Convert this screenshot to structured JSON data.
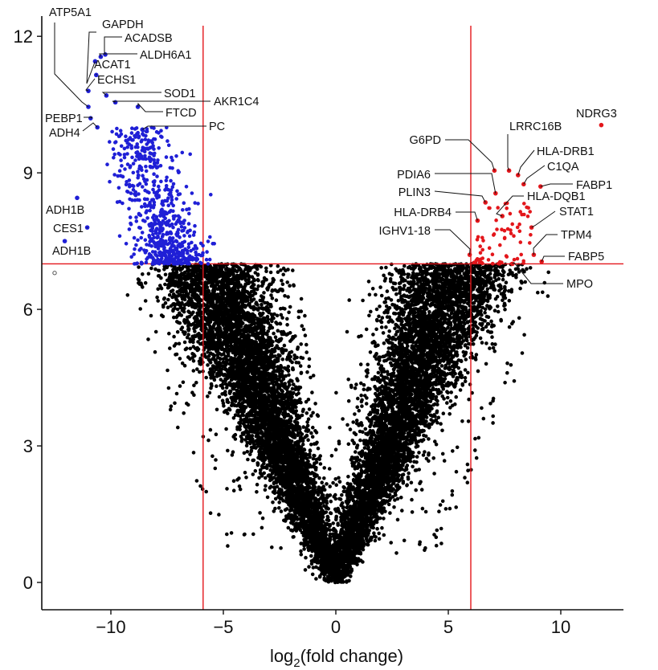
{
  "chart_data": {
    "type": "scatter",
    "title": "",
    "xlabel": {
      "main": "log",
      "sub": "2",
      "rest": "(fold change)"
    },
    "ylabel": "",
    "xlim": [
      -13.4,
      12.5
    ],
    "ylim": [
      -0.6,
      12.4
    ],
    "x_ticks": [
      {
        "value": -10,
        "label": "−10"
      },
      {
        "value": -5,
        "label": "−5"
      },
      {
        "value": 0,
        "label": "0"
      },
      {
        "value": 5,
        "label": "5"
      },
      {
        "value": 10,
        "label": "10"
      }
    ],
    "y_ticks": [
      {
        "value": 0,
        "label": "0"
      },
      {
        "value": 3,
        "label": "3"
      },
      {
        "value": 6,
        "label": "6"
      },
      {
        "value": 9,
        "label": "9"
      },
      {
        "value": 12,
        "label": "12"
      }
    ],
    "thresholds": {
      "x": [
        -5.9,
        6.0
      ],
      "y": 7.0
    },
    "grid": false,
    "colors": {
      "not_significant": "#000000",
      "down_regulated": "#1f1fd6",
      "up_regulated": "#e3161b",
      "threshold_line": "#e3161b"
    },
    "series": [
      {
        "group": "down_regulated",
        "points": [
          {
            "label": "ATP5A1",
            "x": -11.0,
            "y": 10.45
          },
          {
            "label": "GAPDH",
            "x": -10.7,
            "y": 11.45
          },
          {
            "label": "ACADSB",
            "x": -10.25,
            "y": 11.6
          },
          {
            "label": "ALDH6A1",
            "x": -10.45,
            "y": 11.55
          },
          {
            "label": "ACAT1",
            "x": -10.65,
            "y": 11.15
          },
          {
            "label": "ECHS1",
            "x": -11.0,
            "y": 10.8
          },
          {
            "label": "SOD1",
            "x": -10.2,
            "y": 10.7
          },
          {
            "label": "AKR1C4",
            "x": -9.8,
            "y": 10.55
          },
          {
            "label": "FTCD",
            "x": -8.8,
            "y": 10.45
          },
          {
            "label": "PEBP1",
            "x": -10.9,
            "y": 10.2
          },
          {
            "label": "ADH4",
            "x": -10.6,
            "y": 10.0
          },
          {
            "label": "PC",
            "x": -8.6,
            "y": 9.95
          },
          {
            "label": "ADH1B",
            "x": -11.5,
            "y": 8.45
          },
          {
            "label": "CES1",
            "x": -11.05,
            "y": 7.8
          },
          {
            "label": "ADH1B",
            "x": -12.05,
            "y": 7.5
          }
        ]
      },
      {
        "group": "up_regulated",
        "points": [
          {
            "label": "NDRG3",
            "x": 11.8,
            "y": 10.05
          },
          {
            "label": "LRRC16B",
            "x": 7.7,
            "y": 9.05
          },
          {
            "label": "HLA-DRB1",
            "x": 8.1,
            "y": 8.95
          },
          {
            "label": "C1QA",
            "x": 8.35,
            "y": 8.75
          },
          {
            "label": "FABP1",
            "x": 9.1,
            "y": 8.7
          },
          {
            "label": "G6PD",
            "x": 7.05,
            "y": 9.05
          },
          {
            "label": "PDIA6",
            "x": 7.1,
            "y": 8.55
          },
          {
            "label": "PLIN3",
            "x": 6.65,
            "y": 8.35
          },
          {
            "label": "HLA-DQB1",
            "x": 7.4,
            "y": 8.05
          },
          {
            "label": "HLA-DRB4",
            "x": 6.3,
            "y": 7.95
          },
          {
            "label": "STAT1",
            "x": 8.7,
            "y": 7.8
          },
          {
            "label": "IGHV1-18",
            "x": 5.95,
            "y": 7.2
          },
          {
            "label": "TPM4",
            "x": 8.8,
            "y": 7.2
          },
          {
            "label": "FABP5",
            "x": 9.15,
            "y": 7.05
          },
          {
            "label": "MPO",
            "x": 7.85,
            "y": 7.0
          }
        ]
      }
    ],
    "open_points": [
      {
        "x": -12.5,
        "y": 6.8
      }
    ],
    "annotations": [
      {
        "text": "ATP5A1",
        "point_x": -11.0,
        "point_y": 10.45
      },
      {
        "text": "GAPDH",
        "point_x": -10.7,
        "point_y": 11.45
      },
      {
        "text": "ACADSB",
        "point_x": -10.25,
        "point_y": 11.6
      },
      {
        "text": "ALDH6A1",
        "point_x": -10.45,
        "point_y": 11.55
      },
      {
        "text": "ACAT1",
        "point_x": -10.65,
        "point_y": 11.15
      },
      {
        "text": "ECHS1",
        "point_x": -11.0,
        "point_y": 10.8
      },
      {
        "text": "SOD1",
        "point_x": -10.2,
        "point_y": 10.7
      },
      {
        "text": "AKR1C4",
        "point_x": -9.8,
        "point_y": 10.55
      },
      {
        "text": "FTCD",
        "point_x": -8.8,
        "point_y": 10.45
      },
      {
        "text": "PEBP1",
        "point_x": -10.9,
        "point_y": 10.2
      },
      {
        "text": "ADH4",
        "point_x": -10.6,
        "point_y": 10.0
      },
      {
        "text": "PC",
        "point_x": -8.6,
        "point_y": 9.95
      },
      {
        "text": "ADH1B",
        "point_x": -11.5,
        "point_y": 8.45
      },
      {
        "text": "CES1",
        "point_x": -11.05,
        "point_y": 7.8
      },
      {
        "text": "ADH1B",
        "point_x": -12.05,
        "point_y": 7.5
      },
      {
        "text": "NDRG3",
        "point_x": 11.8,
        "point_y": 10.05
      },
      {
        "text": "LRRC16B",
        "point_x": 7.7,
        "point_y": 9.05
      },
      {
        "text": "HLA-DRB1",
        "point_x": 8.1,
        "point_y": 8.95
      },
      {
        "text": "C1QA",
        "point_x": 8.35,
        "point_y": 8.75
      },
      {
        "text": "FABP1",
        "point_x": 9.1,
        "point_y": 8.7
      },
      {
        "text": "G6PD",
        "point_x": 7.05,
        "point_y": 9.05
      },
      {
        "text": "PDIA6",
        "point_x": 7.1,
        "point_y": 8.55
      },
      {
        "text": "PLIN3",
        "point_x": 6.65,
        "point_y": 8.35
      },
      {
        "text": "HLA-DQB1",
        "point_x": 7.4,
        "point_y": 8.05
      },
      {
        "text": "HLA-DRB4",
        "point_x": 6.3,
        "point_y": 7.95
      },
      {
        "text": "STAT1",
        "point_x": 8.7,
        "point_y": 7.8
      },
      {
        "text": "IGHV1-18",
        "point_x": 5.95,
        "point_y": 7.2
      },
      {
        "text": "TPM4",
        "point_x": 8.8,
        "point_y": 7.2
      },
      {
        "text": "FABP5",
        "point_x": 9.15,
        "point_y": 7.05
      },
      {
        "text": "MPO",
        "point_x": 7.85,
        "point_y": 7.0
      }
    ]
  }
}
